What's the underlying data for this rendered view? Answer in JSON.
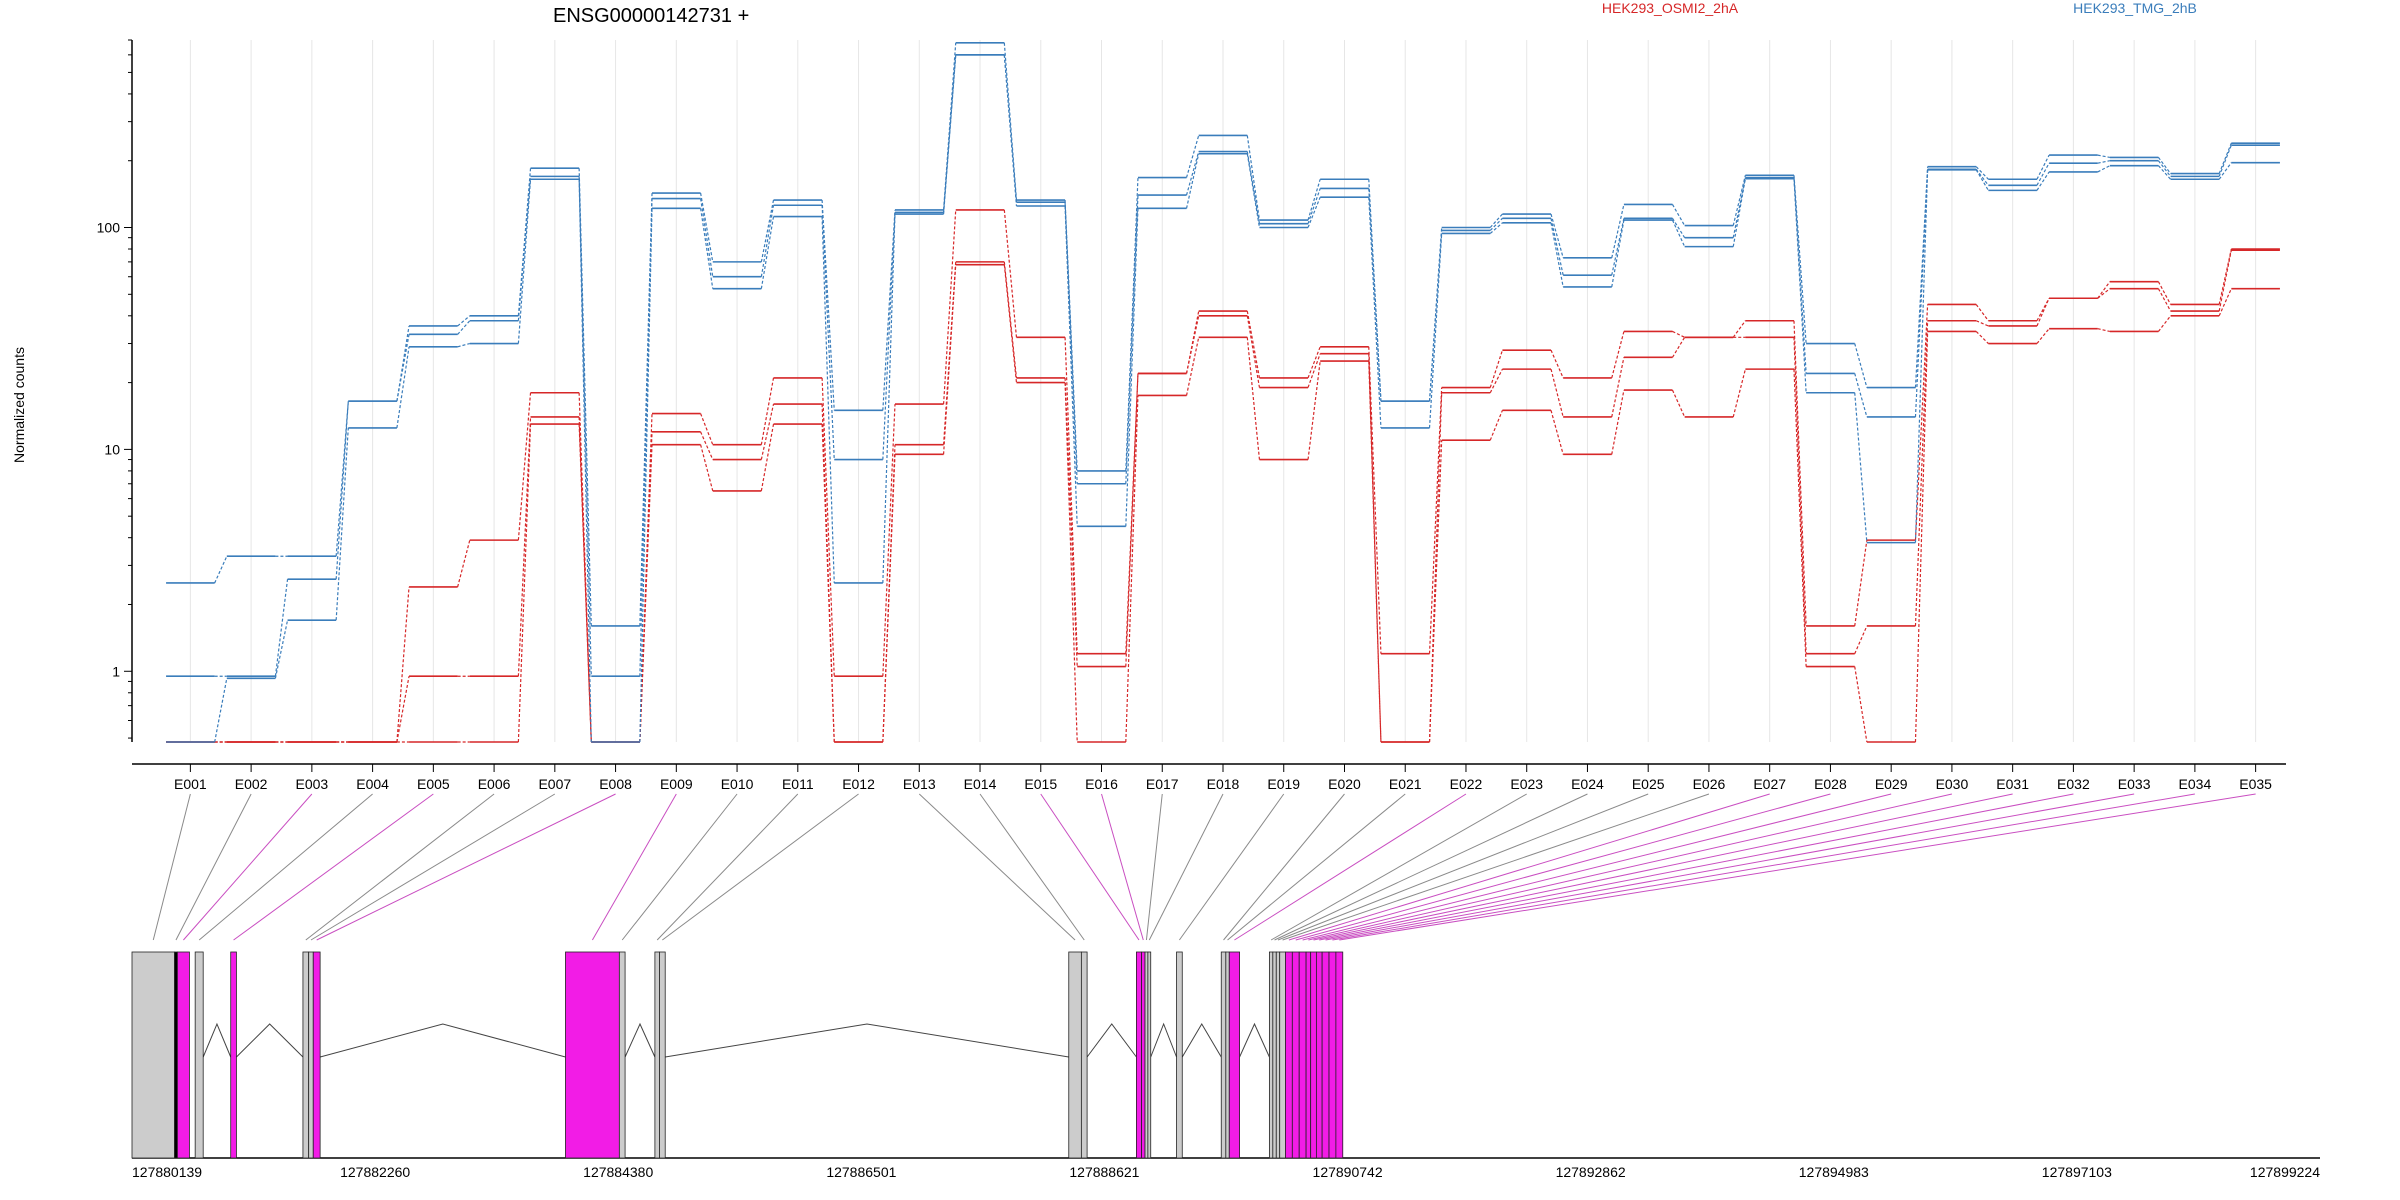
{
  "chart_data": {
    "type": "line",
    "title": "ENSG00000142731 +",
    "ylabel": "Normalized counts",
    "yscale": "log",
    "yticks": [
      "1",
      "10",
      "100"
    ],
    "yaxis_min": 0.48,
    "yaxis_max": 700,
    "grid": "vertical lines at exon bins",
    "legend": [
      "HEK293_OSMI2_2hA",
      "HEK293_TMG_2hB"
    ],
    "categories": [
      "E001",
      "E002",
      "E003",
      "E004",
      "E005",
      "E006",
      "E007",
      "E008",
      "E009",
      "E010",
      "E011",
      "E012",
      "E013",
      "E014",
      "E015",
      "E016",
      "E017",
      "E018",
      "E019",
      "E020",
      "E021",
      "E022",
      "E023",
      "E024",
      "E025",
      "E026",
      "E027",
      "E028",
      "E029",
      "E030",
      "E031",
      "E032",
      "E033",
      "E034",
      "E035"
    ],
    "series": [
      {
        "name": "HEK293_OSMI2_2hA",
        "color": "#d62728",
        "values": [
          0.48,
          0.48,
          0.48,
          0.48,
          2.4,
          3.9,
          18,
          0.48,
          14.5,
          10.5,
          21,
          0.95,
          16,
          120,
          32,
          1.2,
          22,
          42,
          21,
          29,
          1.2,
          19,
          28,
          21,
          34,
          32,
          38,
          1.6,
          3.9,
          45,
          38,
          48,
          57,
          45,
          80
        ]
      },
      {
        "name": "HEK293_OSMI2_2hA",
        "color": "#d62728",
        "values": [
          0.48,
          0.48,
          0.48,
          0.48,
          0.95,
          0.95,
          14,
          0.48,
          12,
          9,
          16,
          0.48,
          10.5,
          70,
          21,
          1.05,
          22,
          40,
          19,
          27,
          0.48,
          18,
          23,
          14,
          26,
          32,
          32,
          1.2,
          1.6,
          38,
          36,
          48,
          53,
          42,
          79
        ]
      },
      {
        "name": "HEK293_OSMI2_2hA",
        "color": "#d62728",
        "values": [
          0.48,
          0.48,
          0.48,
          0.48,
          0.48,
          0.48,
          13,
          0.48,
          10.5,
          6.5,
          13,
          0.48,
          9.5,
          68,
          20,
          0.48,
          17.5,
          32,
          9,
          25,
          0.48,
          11,
          15,
          9.5,
          18.5,
          14,
          23,
          1.05,
          0.48,
          34,
          30,
          35,
          34,
          40,
          53
        ]
      },
      {
        "name": "HEK293_TMG_2hB",
        "color": "#3a7dbb",
        "values": [
          2.5,
          3.3,
          3.3,
          16.5,
          36,
          40,
          185,
          1.6,
          143,
          70,
          133,
          15,
          120,
          680,
          133,
          8,
          168,
          260,
          108,
          165,
          16.5,
          100,
          115,
          73,
          127,
          102,
          172,
          30,
          19,
          188,
          165,
          212,
          207,
          175,
          240
        ]
      },
      {
        "name": "HEK293_TMG_2hB",
        "color": "#3a7dbb",
        "values": [
          0.95,
          0.95,
          2.6,
          16.5,
          33,
          38,
          170,
          0.95,
          135,
          60,
          126,
          9,
          117,
          600,
          130,
          7,
          140,
          220,
          104,
          150,
          16.5,
          97,
          110,
          61,
          110,
          90,
          168,
          22,
          14,
          183,
          155,
          195,
          200,
          170,
          235
        ]
      },
      {
        "name": "HEK293_TMG_2hB",
        "color": "#3a7dbb",
        "values": [
          0.48,
          0.93,
          1.7,
          12.5,
          29,
          30,
          165,
          0.48,
          122,
          53,
          112,
          2.5,
          115,
          600,
          125,
          4.5,
          122,
          215,
          100,
          137,
          12.5,
          94,
          105,
          54,
          108,
          82,
          166,
          18,
          3.8,
          182,
          147,
          178,
          190,
          165,
          196
        ]
      }
    ],
    "exon_track": {
      "coordinates": [
        "127880139",
        "127882260",
        "127884380",
        "127886501",
        "127888621",
        "127890742",
        "127892862",
        "127894983",
        "127897103",
        "127899224"
      ],
      "bins": [
        {
          "id": "E001",
          "start": 127880139,
          "end": 127880510,
          "color": "#cccccc",
          "height": "full"
        },
        {
          "id": "E002",
          "start": 127880510,
          "end": 127880535,
          "color": "#000000",
          "height": "full"
        },
        {
          "id": "E003",
          "start": 127880535,
          "end": 127880640,
          "color": "#f21ce6",
          "height": "full"
        },
        {
          "id": "E004",
          "start": 127880690,
          "end": 127880760,
          "color": "#cccccc",
          "height": "full"
        },
        {
          "id": "E005",
          "start": 127881000,
          "end": 127881050,
          "color": "#f21ce6",
          "height": "full"
        },
        {
          "id": "E006",
          "start": 127881630,
          "end": 127881680,
          "color": "#cccccc",
          "height": "full"
        },
        {
          "id": "E007",
          "start": 127881680,
          "end": 127881720,
          "color": "#cccccc",
          "height": "full"
        },
        {
          "id": "E008",
          "start": 127881720,
          "end": 127881780,
          "color": "#f21ce6",
          "height": "full"
        },
        {
          "id": "E009",
          "start": 127883920,
          "end": 127884390,
          "color": "#f21ce6",
          "height": "full"
        },
        {
          "id": "E010",
          "start": 127884390,
          "end": 127884440,
          "color": "#cccccc",
          "height": "full"
        },
        {
          "id": "E011",
          "start": 127884700,
          "end": 127884740,
          "color": "#cccccc",
          "height": "full"
        },
        {
          "id": "E012",
          "start": 127884740,
          "end": 127884790,
          "color": "#cccccc",
          "height": "full"
        },
        {
          "id": "E013",
          "start": 127888310,
          "end": 127888420,
          "color": "#cccccc",
          "height": "full"
        },
        {
          "id": "E014",
          "start": 127888420,
          "end": 127888470,
          "color": "#cccccc",
          "height": "full"
        },
        {
          "id": "E015",
          "start": 127888900,
          "end": 127888945,
          "color": "#f21ce6",
          "height": "full"
        },
        {
          "id": "E016",
          "start": 127888945,
          "end": 127888975,
          "color": "#f21ce6",
          "height": "full"
        },
        {
          "id": "E017",
          "start": 127888975,
          "end": 127889000,
          "color": "#cccccc",
          "height": "full"
        },
        {
          "id": "E018",
          "start": 127889000,
          "end": 127889025,
          "color": "#cccccc",
          "height": "full"
        },
        {
          "id": "E019",
          "start": 127889250,
          "end": 127889300,
          "color": "#cccccc",
          "height": "full"
        },
        {
          "id": "E020",
          "start": 127889640,
          "end": 127889680,
          "color": "#cccccc",
          "height": "full"
        },
        {
          "id": "E021",
          "start": 127889680,
          "end": 127889710,
          "color": "#cccccc",
          "height": "full"
        },
        {
          "id": "E022",
          "start": 127889710,
          "end": 127889800,
          "color": "#f21ce6",
          "height": "full"
        },
        {
          "id": "E023",
          "start": 127890060,
          "end": 127890090,
          "color": "#cccccc",
          "height": "full"
        },
        {
          "id": "E024",
          "start": 127890090,
          "end": 127890120,
          "color": "#cccccc",
          "height": "full"
        },
        {
          "id": "E025",
          "start": 127890120,
          "end": 127890150,
          "color": "#cccccc",
          "height": "full"
        },
        {
          "id": "E026",
          "start": 127890150,
          "end": 127890200,
          "color": "#cccccc",
          "height": "full"
        },
        {
          "id": "E027",
          "start": 127890200,
          "end": 127890260,
          "color": "#f21ce6",
          "height": "full"
        },
        {
          "id": "E028",
          "start": 127890260,
          "end": 127890320,
          "color": "#f21ce6",
          "height": "full"
        },
        {
          "id": "E029",
          "start": 127890320,
          "end": 127890380,
          "color": "#f21ce6",
          "height": "full"
        },
        {
          "id": "E030",
          "start": 127890380,
          "end": 127890420,
          "color": "#f21ce6",
          "height": "full"
        },
        {
          "id": "E031",
          "start": 127890420,
          "end": 127890470,
          "color": "#f21ce6",
          "height": "full"
        },
        {
          "id": "E032",
          "start": 127890470,
          "end": 127890520,
          "color": "#f21ce6",
          "height": "full"
        },
        {
          "id": "E033",
          "start": 127890520,
          "end": 127890580,
          "color": "#f21ce6",
          "height": "full"
        },
        {
          "id": "E034",
          "start": 127890580,
          "end": 127890640,
          "color": "#f21ce6",
          "height": "full"
        },
        {
          "id": "E035",
          "start": 127890640,
          "end": 127890700,
          "color": "#f21ce6",
          "height": "full"
        }
      ]
    }
  }
}
